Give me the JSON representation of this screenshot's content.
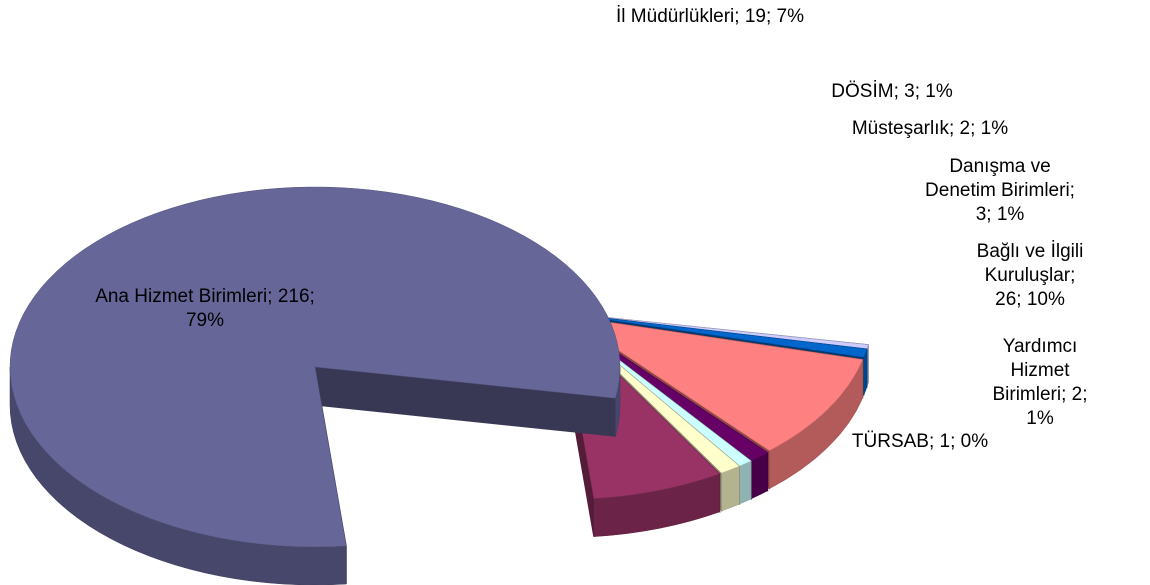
{
  "chart_data": {
    "type": "pie",
    "values": [
      216,
      19,
      3,
      2,
      3,
      26,
      2,
      1
    ],
    "value_labels": [
      "Ana Hizmet Birimleri; 216; 79%",
      "İl Müdürlükleri; 19; 7%",
      "DÖSİM; 3; 1%",
      "Müsteşarlık; 2; 1%",
      "Danışma ve Denetim Birimleri; 3; 1%",
      "Bağlı ve İlgili Kuruluşlar; 26; 10%",
      "Yardımcı Hizmet Birimleri; 2; 1%",
      "TÜRSAB; 1; 0%"
    ],
    "colors": [
      "#666699",
      "#993366",
      "#ffffcc",
      "#ccffff",
      "#660066",
      "#ff8080",
      "#0066cc",
      "#ccccff"
    ]
  }
}
